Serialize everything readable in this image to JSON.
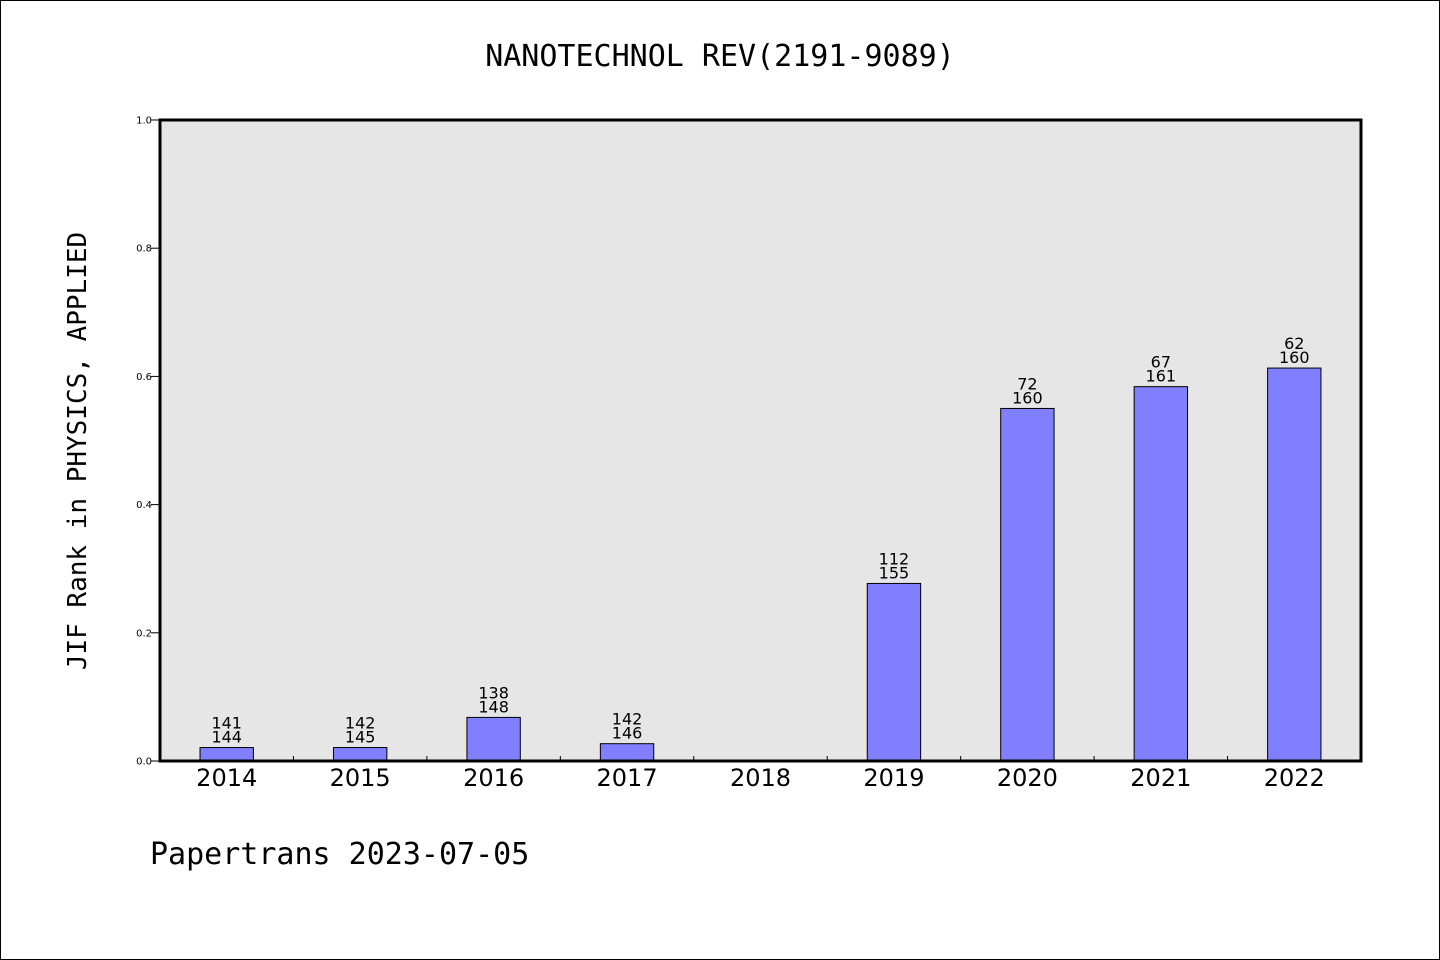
{
  "chart_data": {
    "type": "bar",
    "title": "NANOTECHNOL REV(2191-9089)",
    "ylabel": "JIF Rank in PHYSICS, APPLIED",
    "xlabel": "",
    "footer": "Papertrans 2023-07-05",
    "categories": [
      "2014",
      "2015",
      "2016",
      "2017",
      "2018",
      "2019",
      "2020",
      "2021",
      "2022"
    ],
    "values": [
      0.021,
      0.021,
      0.068,
      0.027,
      null,
      0.277,
      0.55,
      0.584,
      0.613
    ],
    "ranks": [
      "141",
      "142",
      "138",
      "142",
      "",
      "112",
      "72",
      "67",
      "62"
    ],
    "totals": [
      "144",
      "145",
      "148",
      "146",
      "",
      "155",
      "160",
      "161",
      "160"
    ],
    "ylim": [
      0,
      1.0
    ],
    "yticks": [
      "0.0",
      "0.2",
      "0.4",
      "0.6",
      "0.8",
      "1.0"
    ],
    "grid": false,
    "colors": {
      "bar_fill": "#8080ff",
      "plot_background": "#e6e6e6",
      "axis": "#000000"
    }
  }
}
